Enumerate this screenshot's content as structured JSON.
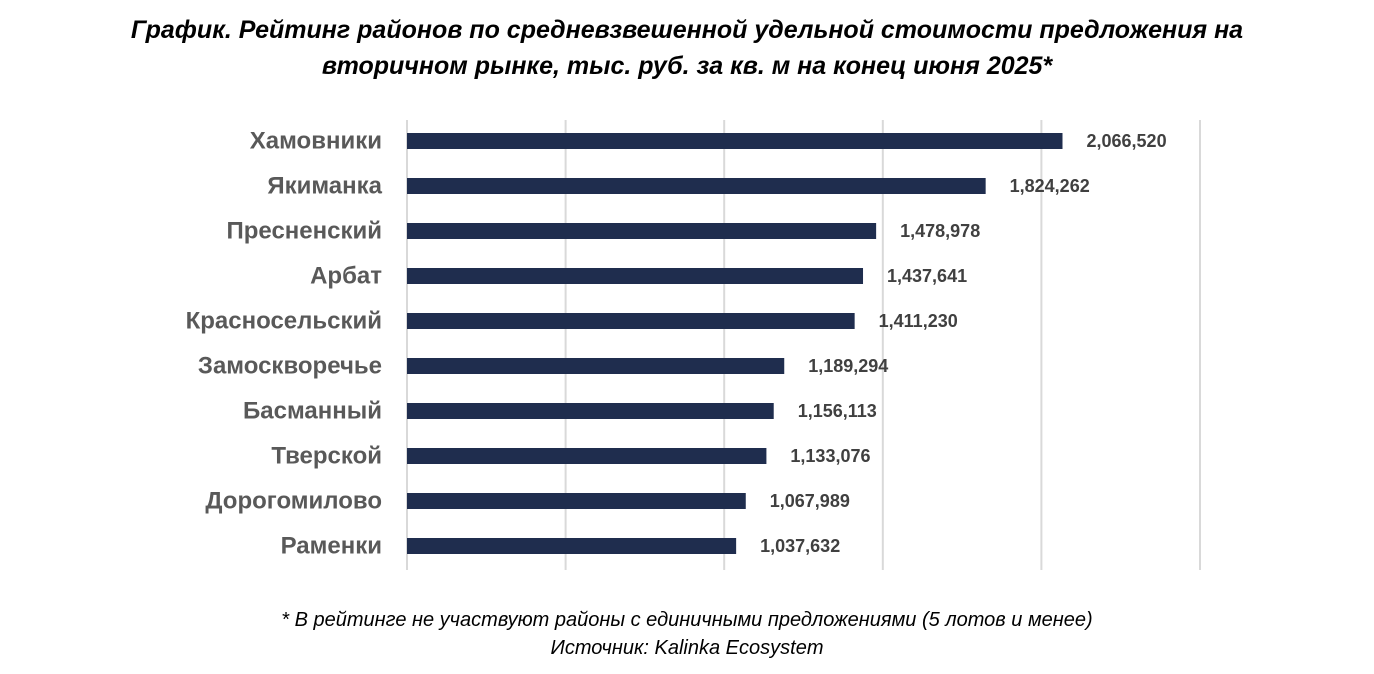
{
  "title_lines": [
    "График. Рейтинг районов по средневзвешенной удельной стоимости предложения на",
    "вторичном рынке, тыс. руб. за кв. м на конец июня 2025*"
  ],
  "footnote": {
    "note": "* В рейтинге не участвуют районы с единичными предложениями (5 лотов и менее)",
    "source": "Источник: Kalinka Ecosystem"
  },
  "colors": {
    "bar": "#1f2d4e",
    "grid": "#d9d9d9",
    "category_text": "#595959",
    "value_text": "#404040"
  },
  "chart_data": {
    "type": "bar",
    "orientation": "horizontal",
    "title": "График. Рейтинг районов по средневзвешенной удельной стоимости предложения на вторичном рынке, тыс. руб. за кв. м на конец июня 2025*",
    "categories": [
      "Хамовники",
      "Якиманка",
      "Пресненский",
      "Арбат",
      "Красносельский",
      "Замоскворечье",
      "Басманный",
      "Тверской",
      "Дорогомилово",
      "Раменки"
    ],
    "values": [
      2066520,
      1824262,
      1478978,
      1437641,
      1411230,
      1189294,
      1156113,
      1133076,
      1067989,
      1037632
    ],
    "value_labels": [
      "2,066,520",
      "1,824,262",
      "1,478,978",
      "1,437,641",
      "1,411,230",
      "1,189,294",
      "1,156,113",
      "1,133,076",
      "1,067,989",
      "1,037,632"
    ],
    "xlim": [
      0,
      2500000
    ],
    "x_gridlines": [
      0,
      500000,
      1000000,
      1500000,
      2000000,
      2500000
    ],
    "grid": true,
    "legend": "none",
    "xlabel": "",
    "ylabel": ""
  }
}
